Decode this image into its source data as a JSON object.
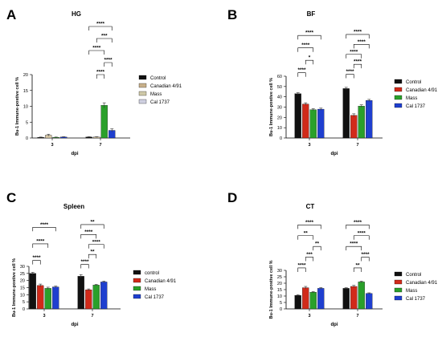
{
  "chart_data": [
    {
      "panel_letter": "A",
      "type": "bar",
      "title": "HG",
      "xlabel": "dpi",
      "ylabel": "Bu-1 Immune-postive cell %",
      "categories": [
        "3",
        "7"
      ],
      "ylim": [
        0,
        20
      ],
      "yticks": [
        0,
        5,
        10,
        15,
        20
      ],
      "series": [
        {
          "name": "Control",
          "color": "#111111",
          "values": [
            0.2,
            0.3
          ],
          "errors": [
            0.1,
            0.1
          ]
        },
        {
          "name": "Canadian 4/91",
          "color": "#c8b08a",
          "values": [
            0.9,
            0.3
          ],
          "errors": [
            0.3,
            0.1
          ]
        },
        {
          "name": "Mass",
          "color": "#cfc9a8",
          "values": [
            0.2,
            10.3
          ],
          "errors": [
            0.1,
            0.8
          ]
        },
        {
          "name": "Cal 1737",
          "color": "#cfd0e0",
          "values": [
            0.3,
            2.4
          ],
          "errors": [
            0.1,
            0.5
          ]
        }
      ],
      "bar_colors_plot": [
        "#111111",
        "#d8c9a8",
        "#2aa02a",
        "#1f3fcf"
      ],
      "significance": [
        {
          "group": 1,
          "from": 0,
          "to": 3,
          "label": "****"
        },
        {
          "group": 1,
          "from": 1,
          "to": 3,
          "label": "***"
        },
        {
          "group": 1,
          "from": 0,
          "to": 2,
          "label": "****"
        },
        {
          "group": 1,
          "from": 2,
          "to": 3,
          "label": "****"
        },
        {
          "group": 1,
          "from": 1,
          "to": 2,
          "label": "****"
        }
      ]
    },
    {
      "panel_letter": "B",
      "type": "bar",
      "title": "BF",
      "xlabel": "dpi",
      "ylabel": "Bu-1 Immune-postive cell %",
      "categories": [
        "3",
        "7"
      ],
      "ylim": [
        0,
        60
      ],
      "yticks": [
        0,
        10,
        20,
        30,
        40,
        50,
        60
      ],
      "series": [
        {
          "name": "Control",
          "color": "#111111",
          "values": [
            43,
            48
          ],
          "errors": [
            1,
            1.2
          ]
        },
        {
          "name": "Canadian 4/91",
          "color": "#d12a1a",
          "values": [
            33,
            22
          ],
          "errors": [
            1.2,
            1.5
          ]
        },
        {
          "name": "Mass",
          "color": "#2aa02a",
          "values": [
            27.5,
            31
          ],
          "errors": [
            1,
            1.2
          ]
        },
        {
          "name": "Cal 1737",
          "color": "#1f3fcf",
          "values": [
            28,
            36.5
          ],
          "errors": [
            1,
            1
          ]
        }
      ],
      "significance": [
        {
          "group": 0,
          "from": 0,
          "to": 1,
          "label": "****"
        },
        {
          "group": 0,
          "from": 1,
          "to": 2,
          "label": "*"
        },
        {
          "group": 0,
          "from": 0,
          "to": 2,
          "label": "****"
        },
        {
          "group": 0,
          "from": 0,
          "to": 3,
          "label": "****"
        },
        {
          "group": 1,
          "from": 0,
          "to": 1,
          "label": "****"
        },
        {
          "group": 1,
          "from": 1,
          "to": 2,
          "label": "****"
        },
        {
          "group": 1,
          "from": 0,
          "to": 2,
          "label": "****"
        },
        {
          "group": 1,
          "from": 1,
          "to": 3,
          "label": "****"
        },
        {
          "group": 1,
          "from": 0,
          "to": 3,
          "label": "****"
        }
      ]
    },
    {
      "panel_letter": "C",
      "type": "bar",
      "title": "Spleen",
      "xlabel": "dpi",
      "ylabel": "Bu-1 Immune-postive cell %",
      "categories": [
        "3",
        "7"
      ],
      "ylim": [
        0,
        30
      ],
      "yticks": [
        0,
        5,
        10,
        15,
        20,
        25,
        30
      ],
      "series": [
        {
          "name": "control",
          "color": "#111111",
          "values": [
            25,
            23
          ],
          "errors": [
            0.8,
            1.2
          ]
        },
        {
          "name": "Canadian 4/91",
          "color": "#d12a1a",
          "values": [
            16.5,
            13.5
          ],
          "errors": [
            1,
            0.6
          ]
        },
        {
          "name": "Mass",
          "color": "#2aa02a",
          "values": [
            14.5,
            16.8
          ],
          "errors": [
            0.8,
            0.5
          ]
        },
        {
          "name": "Cal 1737",
          "color": "#1f3fcf",
          "values": [
            15.5,
            19
          ],
          "errors": [
            0.6,
            0.6
          ]
        }
      ],
      "significance": [
        {
          "group": 0,
          "from": 0,
          "to": 1,
          "label": "****"
        },
        {
          "group": 0,
          "from": 0,
          "to": 2,
          "label": "****"
        },
        {
          "group": 0,
          "from": 0,
          "to": 3,
          "label": "****"
        },
        {
          "group": 1,
          "from": 0,
          "to": 1,
          "label": "****"
        },
        {
          "group": 1,
          "from": 1,
          "to": 2,
          "label": "**"
        },
        {
          "group": 1,
          "from": 1,
          "to": 3,
          "label": "****"
        },
        {
          "group": 1,
          "from": 0,
          "to": 2,
          "label": "****"
        },
        {
          "group": 1,
          "from": 0,
          "to": 3,
          "label": "**"
        }
      ]
    },
    {
      "panel_letter": "D",
      "type": "bar",
      "title": "CT",
      "xlabel": "dpi",
      "ylabel": "Bu-1 Immune-postive cell %",
      "categories": [
        "3",
        "7"
      ],
      "ylim": [
        0,
        30
      ],
      "yticks": [
        0,
        5,
        10,
        15,
        20,
        25,
        30
      ],
      "series": [
        {
          "name": "Control",
          "color": "#111111",
          "values": [
            10.5,
            16
          ],
          "errors": [
            0.5,
            0.5
          ]
        },
        {
          "name": "Canadian 4/91",
          "color": "#d12a1a",
          "values": [
            16.5,
            17.5
          ],
          "errors": [
            1,
            0.8
          ]
        },
        {
          "name": "Mass",
          "color": "#2aa02a",
          "values": [
            13,
            21
          ],
          "errors": [
            0.5,
            0.6
          ]
        },
        {
          "name": "Cal 1737",
          "color": "#1f3fcf",
          "values": [
            16,
            12
          ],
          "errors": [
            0.6,
            0.5
          ]
        }
      ],
      "significance": [
        {
          "group": 0,
          "from": 0,
          "to": 1,
          "label": "****"
        },
        {
          "group": 0,
          "from": 1,
          "to": 2,
          "label": "***"
        },
        {
          "group": 0,
          "from": 2,
          "to": 3,
          "label": "**"
        },
        {
          "group": 0,
          "from": 0,
          "to": 2,
          "label": "**"
        },
        {
          "group": 0,
          "from": 0,
          "to": 3,
          "label": "****"
        },
        {
          "group": 1,
          "from": 1,
          "to": 2,
          "label": "**"
        },
        {
          "group": 1,
          "from": 2,
          "to": 3,
          "label": "****"
        },
        {
          "group": 1,
          "from": 0,
          "to": 2,
          "label": "****"
        },
        {
          "group": 1,
          "from": 1,
          "to": 3,
          "label": "****"
        },
        {
          "group": 1,
          "from": 0,
          "to": 3,
          "label": "****"
        }
      ]
    }
  ]
}
